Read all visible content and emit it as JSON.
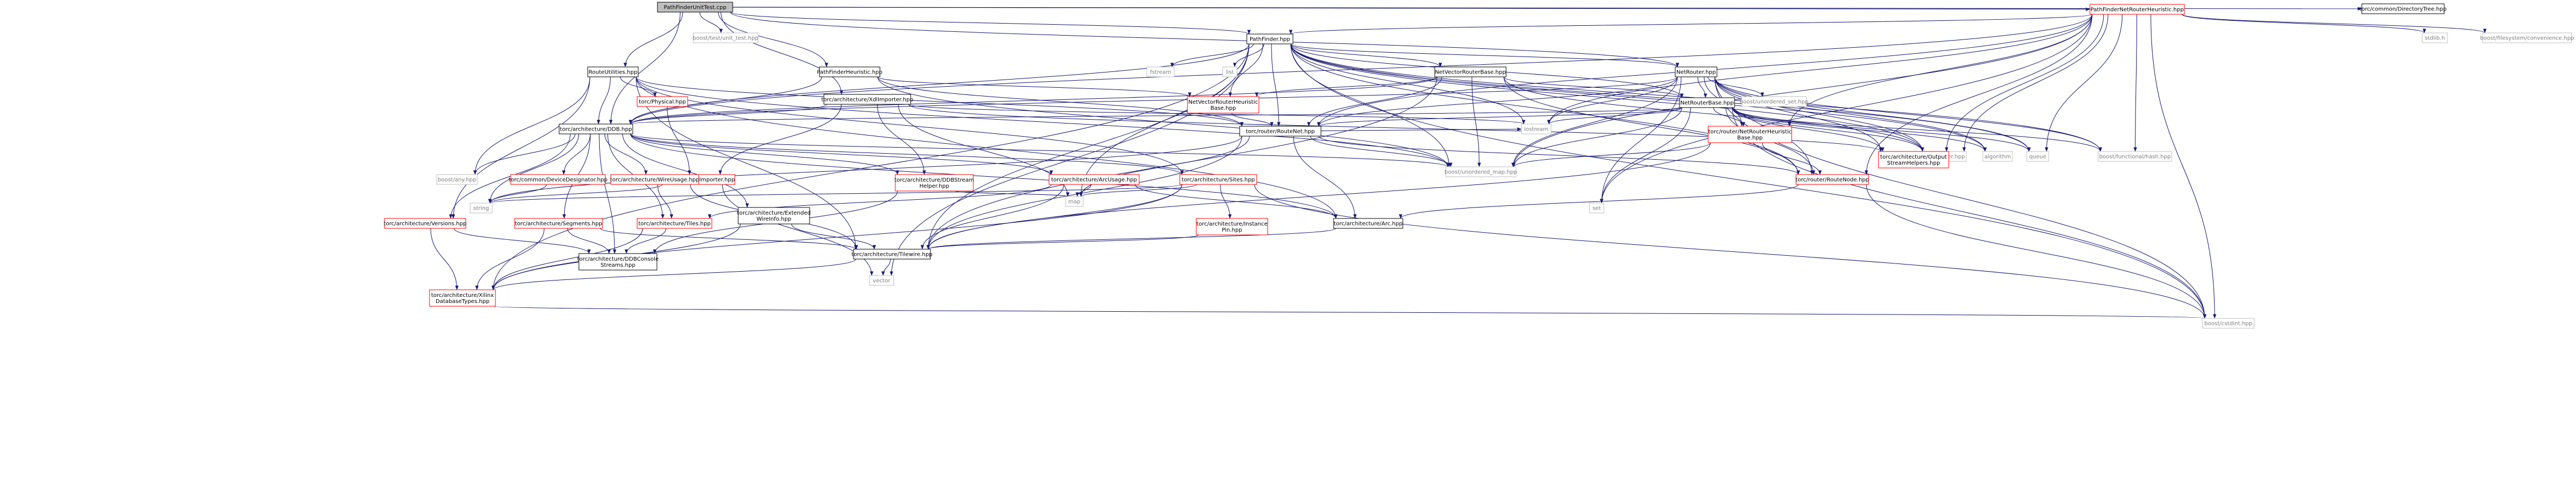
{
  "diagram": {
    "type": "include-dependency-graph",
    "root": "PathFinderUnitTest.cpp",
    "colors": {
      "root_fill": "#bfbfbf",
      "node_fill": "#ffffff",
      "black_border": "#000000",
      "red_border": "#ff0000",
      "gray_border": "#bfbfbf",
      "gray_text": "#7f7f7f",
      "edge": "#191970"
    },
    "nodes": [
      {
        "id": "n_root",
        "lines": [
          "PathFinderUnitTest.cpp"
        ],
        "style": "root"
      },
      {
        "id": "n_boosttest",
        "lines": [
          "boost/test/unit_test.hpp"
        ],
        "style": "gray"
      },
      {
        "id": "n_pathfinder",
        "lines": [
          "PathFinder.hpp"
        ],
        "style": "black"
      },
      {
        "id": "n_pfheur",
        "lines": [
          "PathFinderHeuristic.hpp"
        ],
        "style": "black"
      },
      {
        "id": "n_routeutil",
        "lines": [
          "RouteUtilities.hpp"
        ],
        "style": "black"
      },
      {
        "id": "n_xdlimp",
        "lines": [
          "torc/architecture/XdlImporter.hpp"
        ],
        "style": "black"
      },
      {
        "id": "n_ddb",
        "lines": [
          "torc/architecture/DDB.hpp"
        ],
        "style": "black"
      },
      {
        "id": "n_netrouter",
        "lines": [
          "NetRouter.hpp"
        ],
        "style": "black"
      },
      {
        "id": "n_pfnetheur",
        "lines": [
          "PathFinderNetRouterHeuristic.hpp"
        ],
        "style": "red"
      },
      {
        "id": "n_dirtree",
        "lines": [
          "torc/common/DirectoryTree.hpp"
        ],
        "style": "black"
      },
      {
        "id": "n_stdlib",
        "lines": [
          "stdlib.h"
        ],
        "style": "gray"
      },
      {
        "id": "n_boostfsconv",
        "lines": [
          "boost/filesystem/convenience.hpp"
        ],
        "style": "gray"
      },
      {
        "id": "n_fstream",
        "lines": [
          "fstream"
        ],
        "style": "gray"
      },
      {
        "id": "n_list",
        "lines": [
          "list"
        ],
        "style": "gray"
      },
      {
        "id": "n_nvrb",
        "lines": [
          "NetVectorRouterBase.hpp"
        ],
        "style": "black"
      },
      {
        "id": "n_nvrheurbase",
        "lines": [
          "NetVectorRouterHeuristic",
          "Base.hpp"
        ],
        "style": "red"
      },
      {
        "id": "n_netrouterbase",
        "lines": [
          "NetRouterBase.hpp"
        ],
        "style": "black"
      },
      {
        "id": "n_boostunset",
        "lines": [
          "boost/unordered_set.hpp"
        ],
        "style": "gray"
      },
      {
        "id": "n_rnheurbase",
        "lines": [
          "torc/router/NetRouterHeuristic",
          "Base.hpp"
        ],
        "style": "red"
      },
      {
        "id": "n_routenet",
        "lines": [
          "torc/router/RouteNet.hpp"
        ],
        "style": "black"
      },
      {
        "id": "n_iostream",
        "lines": [
          "iostream"
        ],
        "style": "gray"
      },
      {
        "id": "n_boosttimer",
        "lines": [
          "boost/timer.hpp"
        ],
        "style": "gray"
      },
      {
        "id": "n_algorithm",
        "lines": [
          "algorithm"
        ],
        "style": "gray"
      },
      {
        "id": "n_queue",
        "lines": [
          "queue"
        ],
        "style": "gray"
      },
      {
        "id": "n_boosthash",
        "lines": [
          "boost/functional/hash.hpp"
        ],
        "style": "gray"
      },
      {
        "id": "n_outstream",
        "lines": [
          "torc/architecture/Output",
          "StreamHelpers.hpp"
        ],
        "style": "red"
      },
      {
        "id": "n_boostunmap",
        "lines": [
          "boost/unordered_map.hpp"
        ],
        "style": "gray"
      },
      {
        "id": "n_routenode",
        "lines": [
          "torc/router/RouteNode.hpp"
        ],
        "style": "red"
      },
      {
        "id": "n_physical",
        "lines": [
          "torc/Physical.hpp"
        ],
        "style": "red"
      },
      {
        "id": "n_physxdlimp",
        "lines": [
          "torc/physical/XdlImporter.hpp"
        ],
        "style": "red"
      },
      {
        "id": "n_boostany",
        "lines": [
          "boost/any.hpp"
        ],
        "style": "gray"
      },
      {
        "id": "n_devdesig",
        "lines": [
          "torc/common/DeviceDesignator.hpp"
        ],
        "style": "red"
      },
      {
        "id": "n_wireusage",
        "lines": [
          "torc/architecture/WireUsage.hpp"
        ],
        "style": "red"
      },
      {
        "id": "n_extwire",
        "lines": [
          "torc/architecture/Extended",
          "WireInfo.hpp"
        ],
        "style": "black"
      },
      {
        "id": "n_ddbstream",
        "lines": [
          "torc/architecture/DDBStream",
          "Helper.hpp"
        ],
        "style": "red"
      },
      {
        "id": "n_arcusage",
        "lines": [
          "torc/architecture/ArcUsage.hpp"
        ],
        "style": "red"
      },
      {
        "id": "n_sites",
        "lines": [
          "torc/architecture/Sites.hpp"
        ],
        "style": "red"
      },
      {
        "id": "n_versions",
        "lines": [
          "torc/architecture/Versions.hpp"
        ],
        "style": "red"
      },
      {
        "id": "n_segments",
        "lines": [
          "torc/architecture/Segments.hpp"
        ],
        "style": "red"
      },
      {
        "id": "n_string",
        "lines": [
          "string"
        ],
        "style": "gray"
      },
      {
        "id": "n_tiles",
        "lines": [
          "torc/architecture/Tiles.hpp"
        ],
        "style": "red"
      },
      {
        "id": "n_map",
        "lines": [
          "map"
        ],
        "style": "gray"
      },
      {
        "id": "n_instpin",
        "lines": [
          "torc/architecture/Instance",
          "Pin.hpp"
        ],
        "style": "red"
      },
      {
        "id": "n_arc",
        "lines": [
          "torc/architecture/Arc.hpp"
        ],
        "style": "black"
      },
      {
        "id": "n_set",
        "lines": [
          "set"
        ],
        "style": "gray"
      },
      {
        "id": "n_ddbconsole",
        "lines": [
          "torc/architecture/DDBConsole",
          "Streams.hpp"
        ],
        "style": "black"
      },
      {
        "id": "n_tilewire",
        "lines": [
          "torc/architecture/Tilewire.hpp"
        ],
        "style": "black"
      },
      {
        "id": "n_vector",
        "lines": [
          "vector"
        ],
        "style": "gray"
      },
      {
        "id": "n_xilinxdb",
        "lines": [
          "torc/architecture/Xilinx",
          "DatabaseTypes.hpp"
        ],
        "style": "red"
      },
      {
        "id": "n_cstdint",
        "lines": [
          "boost/cstdint.hpp"
        ],
        "style": "gray"
      }
    ],
    "edges": [
      [
        "n_root",
        "n_boosttest"
      ],
      [
        "n_root",
        "n_pathfinder"
      ],
      [
        "n_root",
        "n_pfheur"
      ],
      [
        "n_root",
        "n_routeutil"
      ],
      [
        "n_root",
        "n_xdlimp"
      ],
      [
        "n_root",
        "n_ddb"
      ],
      [
        "n_root",
        "n_netrouter"
      ],
      [
        "n_root",
        "n_pfnetheur"
      ],
      [
        "n_root",
        "n_dirtree"
      ],
      [
        "n_pfnetheur",
        "n_stdlib"
      ],
      [
        "n_pfnetheur",
        "n_boostfsconv"
      ],
      [
        "n_pfnetheur",
        "n_pathfinder"
      ],
      [
        "n_pfnetheur",
        "n_routenet"
      ],
      [
        "n_pfnetheur",
        "n_routenode"
      ],
      [
        "n_pfnetheur",
        "n_rnheurbase"
      ],
      [
        "n_pfnetheur",
        "n_outstream"
      ],
      [
        "n_pfnetheur",
        "n_boosthash"
      ],
      [
        "n_pfnetheur",
        "n_iostream"
      ],
      [
        "n_pfnetheur",
        "n_queue"
      ],
      [
        "n_pfnetheur",
        "n_set"
      ],
      [
        "n_pfnetheur",
        "n_cstdint"
      ],
      [
        "n_pfnetheur",
        "n_boostunmap"
      ],
      [
        "n_pfnetheur",
        "n_ddb"
      ],
      [
        "n_pfnetheur",
        "n_boosttimer"
      ],
      [
        "n_pathfinder",
        "n_fstream"
      ],
      [
        "n_pathfinder",
        "n_list"
      ],
      [
        "n_pathfinder",
        "n_nvrb"
      ],
      [
        "n_pathfinder",
        "n_nvrheurbase"
      ],
      [
        "n_pathfinder",
        "n_netrouter"
      ],
      [
        "n_pathfinder",
        "n_netrouterbase"
      ],
      [
        "n_pathfinder",
        "n_ddb"
      ],
      [
        "n_pathfinder",
        "n_routenet"
      ],
      [
        "n_pathfinder",
        "n_iostream"
      ],
      [
        "n_pathfinder",
        "n_boosttimer"
      ],
      [
        "n_pathfinder",
        "n_algorithm"
      ],
      [
        "n_pathfinder",
        "n_queue"
      ],
      [
        "n_pathfinder",
        "n_boosthash"
      ],
      [
        "n_pathfinder",
        "n_boostunmap"
      ],
      [
        "n_pathfinder",
        "n_map"
      ],
      [
        "n_pathfinder",
        "n_tilewire"
      ],
      [
        "n_pathfinder",
        "n_vector"
      ],
      [
        "n_pathfinder",
        "n_cstdint"
      ],
      [
        "n_pathfinder",
        "n_xilinxdb"
      ],
      [
        "n_pathfinder",
        "n_routenode"
      ],
      [
        "n_pfheur",
        "n_nvrheurbase"
      ],
      [
        "n_pfheur",
        "n_ddb"
      ],
      [
        "n_pfheur",
        "n_routenet"
      ],
      [
        "n_pfheur",
        "n_boostunmap"
      ],
      [
        "n_routeutil",
        "n_ddb"
      ],
      [
        "n_routeutil",
        "n_physical"
      ],
      [
        "n_routeutil",
        "n_routenet"
      ],
      [
        "n_routeutil",
        "n_tilewire"
      ],
      [
        "n_routeutil",
        "n_arc"
      ],
      [
        "n_routeutil",
        "n_boostany"
      ],
      [
        "n_routeutil",
        "n_sites"
      ],
      [
        "n_routeutil",
        "n_versions"
      ],
      [
        "n_routeutil",
        "n_boostunmap"
      ],
      [
        "n_xdlimp",
        "n_ddb"
      ],
      [
        "n_xdlimp",
        "n_physxdlimp"
      ],
      [
        "n_xdlimp",
        "n_ddbstream"
      ],
      [
        "n_xdlimp",
        "n_iostream"
      ],
      [
        "n_xdlimp",
        "n_outstream"
      ],
      [
        "n_xdlimp",
        "n_map"
      ],
      [
        "n_nvrb",
        "n_nvrheurbase"
      ],
      [
        "n_nvrb",
        "n_routenet"
      ],
      [
        "n_nvrb",
        "n_ddb"
      ],
      [
        "n_nvrb",
        "n_boostunmap"
      ],
      [
        "n_nvrb",
        "n_boosttimer"
      ],
      [
        "n_nvrb",
        "n_routenode"
      ],
      [
        "n_nvrb",
        "n_tilewire"
      ],
      [
        "n_nvrb",
        "n_netrouterbase"
      ],
      [
        "n_nvrheurbase",
        "n_routenet"
      ],
      [
        "n_netrouter",
        "n_netrouterbase"
      ],
      [
        "n_netrouter",
        "n_boostunset"
      ],
      [
        "n_netrouter",
        "n_rnheurbase"
      ],
      [
        "n_netrouter",
        "n_routenet"
      ],
      [
        "n_netrouter",
        "n_boosttimer"
      ],
      [
        "n_netrouter",
        "n_algorithm"
      ],
      [
        "n_netrouter",
        "n_queue"
      ],
      [
        "n_netrouter",
        "n_boosthash"
      ],
      [
        "n_netrouter",
        "n_outstream"
      ],
      [
        "n_netrouter",
        "n_boostunmap"
      ],
      [
        "n_netrouter",
        "n_iostream"
      ],
      [
        "n_netrouter",
        "n_set"
      ],
      [
        "n_netrouter",
        "n_cstdint"
      ],
      [
        "n_netrouter",
        "n_ddb"
      ],
      [
        "n_netrouter",
        "n_routenode"
      ],
      [
        "n_netrouterbase",
        "n_ddb"
      ],
      [
        "n_netrouterbase",
        "n_rnheurbase"
      ],
      [
        "n_netrouterbase",
        "n_routenet"
      ],
      [
        "n_netrouterbase",
        "n_routenode"
      ],
      [
        "n_netrouterbase",
        "n_outstream"
      ],
      [
        "n_netrouterbase",
        "n_boosttimer"
      ],
      [
        "n_netrouterbase",
        "n_algorithm"
      ],
      [
        "n_netrouterbase",
        "n_queue"
      ],
      [
        "n_netrouterbase",
        "n_boosthash"
      ],
      [
        "n_netrouterbase",
        "n_iostream"
      ],
      [
        "n_netrouterbase",
        "n_set"
      ],
      [
        "n_netrouterbase",
        "n_cstdint"
      ],
      [
        "n_netrouterbase",
        "n_boostunmap"
      ],
      [
        "n_rnheurbase",
        "n_routenode"
      ],
      [
        "n_rnheurbase",
        "n_boostunmap"
      ],
      [
        "n_rnheurbase",
        "n_tilewire"
      ],
      [
        "n_routenet",
        "n_routenode"
      ],
      [
        "n_routenet",
        "n_boostunmap"
      ],
      [
        "n_routenet",
        "n_map"
      ],
      [
        "n_routenet",
        "n_string"
      ],
      [
        "n_routenet",
        "n_arc"
      ],
      [
        "n_routenet",
        "n_tilewire"
      ],
      [
        "n_routenet",
        "n_iostream"
      ],
      [
        "n_routenode",
        "n_arc"
      ],
      [
        "n_routenode",
        "n_cstdint"
      ],
      [
        "n_physical",
        "n_physxdlimp"
      ],
      [
        "n_physxdlimp",
        "n_string"
      ],
      [
        "n_physxdlimp",
        "n_vector"
      ],
      [
        "n_ddb",
        "n_boostany"
      ],
      [
        "n_ddb",
        "n_devdesig"
      ],
      [
        "n_ddb",
        "n_wireusage"
      ],
      [
        "n_ddb",
        "n_extwire"
      ],
      [
        "n_ddb",
        "n_ddbstream"
      ],
      [
        "n_ddb",
        "n_arcusage"
      ],
      [
        "n_ddb",
        "n_sites"
      ],
      [
        "n_ddb",
        "n_versions"
      ],
      [
        "n_ddb",
        "n_segments"
      ],
      [
        "n_ddb",
        "n_tiles"
      ],
      [
        "n_ddb",
        "n_string"
      ],
      [
        "n_ddb",
        "n_ddbconsole"
      ],
      [
        "n_ddb",
        "n_boostunmap"
      ],
      [
        "n_ddb",
        "n_arc"
      ],
      [
        "n_devdesig",
        "n_string"
      ],
      [
        "n_wireusage",
        "n_tiles"
      ],
      [
        "n_wireusage",
        "n_tilewire"
      ],
      [
        "n_extwire",
        "n_tilewire"
      ],
      [
        "n_extwire",
        "n_xilinxdb"
      ],
      [
        "n_ddbstream",
        "n_map"
      ],
      [
        "n_ddbstream",
        "n_ddbconsole"
      ],
      [
        "n_arcusage",
        "n_map"
      ],
      [
        "n_arcusage",
        "n_arc"
      ],
      [
        "n_arcusage",
        "n_tiles"
      ],
      [
        "n_arcusage",
        "n_tilewire"
      ],
      [
        "n_sites",
        "n_map"
      ],
      [
        "n_sites",
        "n_string"
      ],
      [
        "n_sites",
        "n_instpin"
      ],
      [
        "n_sites",
        "n_tilewire"
      ],
      [
        "n_sites",
        "n_xilinxdb"
      ],
      [
        "n_sites",
        "n_cstdint"
      ],
      [
        "n_versions",
        "n_ddbconsole"
      ],
      [
        "n_versions",
        "n_xilinxdb"
      ],
      [
        "n_segments",
        "n_ddbconsole"
      ],
      [
        "n_segments",
        "n_tilewire"
      ],
      [
        "n_segments",
        "n_xilinxdb"
      ],
      [
        "n_tiles",
        "n_ddbconsole"
      ],
      [
        "n_tiles",
        "n_xilinxdb"
      ],
      [
        "n_instpin",
        "n_tilewire"
      ],
      [
        "n_arc",
        "n_tilewire"
      ],
      [
        "n_tilewire",
        "n_xilinxdb"
      ],
      [
        "n_tilewire",
        "n_vector"
      ],
      [
        "n_xilinxdb",
        "n_cstdint"
      ]
    ]
  }
}
